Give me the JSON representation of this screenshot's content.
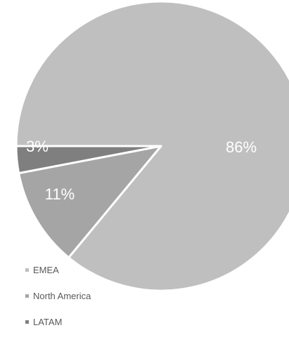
{
  "chart_data": {
    "type": "pie",
    "categories": [
      "EMEA",
      "North America",
      "LATAM"
    ],
    "values": [
      86,
      11,
      3
    ],
    "data_labels": [
      "86%",
      "11%",
      "3%"
    ],
    "colors": [
      "#bfbfbf",
      "#a5a5a5",
      "#7f7f7f"
    ],
    "slice_border_color": "#ffffff",
    "label_color": "#ffffff",
    "legend_position": "bottom-left"
  }
}
